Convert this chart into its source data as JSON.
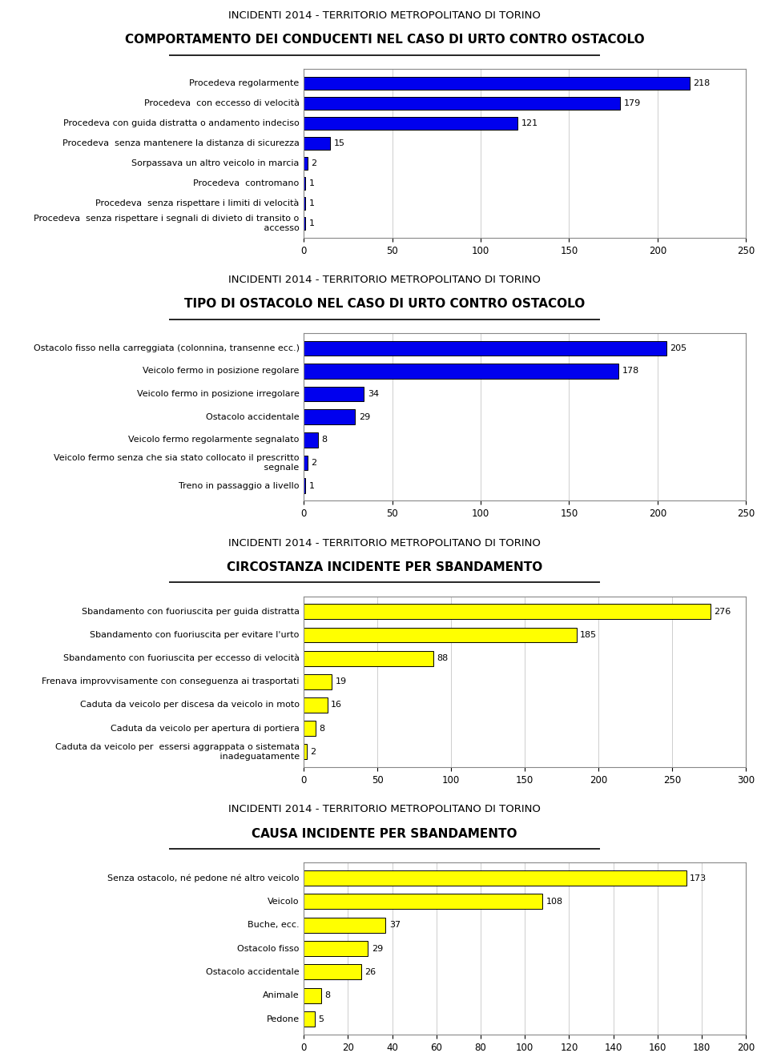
{
  "chart1": {
    "title1": "INCIDENTI 2014 - TERRITORIO METROPOLITANO DI TORINO",
    "title2": "COMPORTAMENTO DEI CONDUCENTI NEL CASO DI URTO CONTRO OSTACOLO",
    "categories": [
      "Procedeva  senza rispettare i segnali di divieto di transito o\n accesso",
      "Procedeva  senza rispettare i limiti di velocità",
      "Procedeva  contromano",
      "Sorpassava un altro veicolo in marcia",
      "Procedeva  senza mantenere la distanza di sicurezza",
      "Procedeva con guida distratta o andamento indeciso",
      "Procedeva  con eccesso di velocità",
      "Procedeva regolarmente"
    ],
    "values": [
      1,
      1,
      1,
      2,
      15,
      121,
      179,
      218
    ],
    "bar_color": "#0000EE",
    "xlim": [
      0,
      250
    ],
    "xticks": [
      0,
      50,
      100,
      150,
      200,
      250
    ]
  },
  "chart2": {
    "title1": "INCIDENTI 2014 - TERRITORIO METROPOLITANO DI TORINO",
    "title2": "TIPO DI OSTACOLO NEL CASO DI URTO CONTRO OSTACOLO",
    "categories": [
      "Treno in passaggio a livello",
      "Veicolo fermo senza che sia stato collocato il prescritto\n segnale",
      "Veicolo fermo regolarmente segnalato",
      "Ostacolo accidentale",
      "Veicolo fermo in posizione irregolare",
      "Veicolo fermo in posizione regolare",
      "Ostacolo fisso nella carreggiata (colonnina, transenne ecc.)"
    ],
    "values": [
      1,
      2,
      8,
      29,
      34,
      178,
      205
    ],
    "bar_color": "#0000EE",
    "xlim": [
      0,
      250
    ],
    "xticks": [
      0,
      50,
      100,
      150,
      200,
      250
    ]
  },
  "chart3": {
    "title1": "INCIDENTI 2014 - TERRITORIO METROPOLITANO DI TORINO",
    "title2": "CIRCOSTANZA INCIDENTE PER SBANDAMENTO",
    "categories": [
      "Caduta da veicolo per  essersi aggrappata o sistemata\n inadeguatamente",
      "Caduta da veicolo per apertura di portiera",
      "Caduta da veicolo per discesa da veicolo in moto",
      "Frenava improvvisamente con conseguenza ai trasportati",
      "Sbandamento con fuoriuscita per eccesso di velocità",
      "Sbandamento con fuoriuscita per evitare l'urto",
      "Sbandamento con fuoriuscita per guida distratta"
    ],
    "values": [
      2,
      8,
      16,
      19,
      88,
      185,
      276
    ],
    "bar_color": "#FFFF00",
    "xlim": [
      0,
      300
    ],
    "xticks": [
      0,
      50,
      100,
      150,
      200,
      250,
      300
    ]
  },
  "chart4": {
    "title1": "INCIDENTI 2014 - TERRITORIO METROPOLITANO DI TORINO",
    "title2": "CAUSA INCIDENTE PER SBANDAMENTO",
    "categories": [
      "Pedone",
      "Animale",
      "Ostacolo accidentale",
      "Ostacolo fisso",
      "Buche, ecc.",
      "Veicolo",
      "Senza ostacolo, né pedone né altro veicolo"
    ],
    "values": [
      5,
      8,
      26,
      29,
      37,
      108,
      173
    ],
    "bar_color": "#FFFF00",
    "xlim": [
      0,
      200
    ],
    "xticks": [
      0,
      20,
      40,
      60,
      80,
      100,
      120,
      140,
      160,
      180,
      200
    ]
  },
  "background_color": "#FFFFFF",
  "bar_edge_color": "#000000",
  "text_color": "#000000",
  "title1_fontsize": 9.5,
  "title2_fontsize": 11.0,
  "label_fontsize": 8.0,
  "value_fontsize": 8.0,
  "tick_fontsize": 8.5
}
